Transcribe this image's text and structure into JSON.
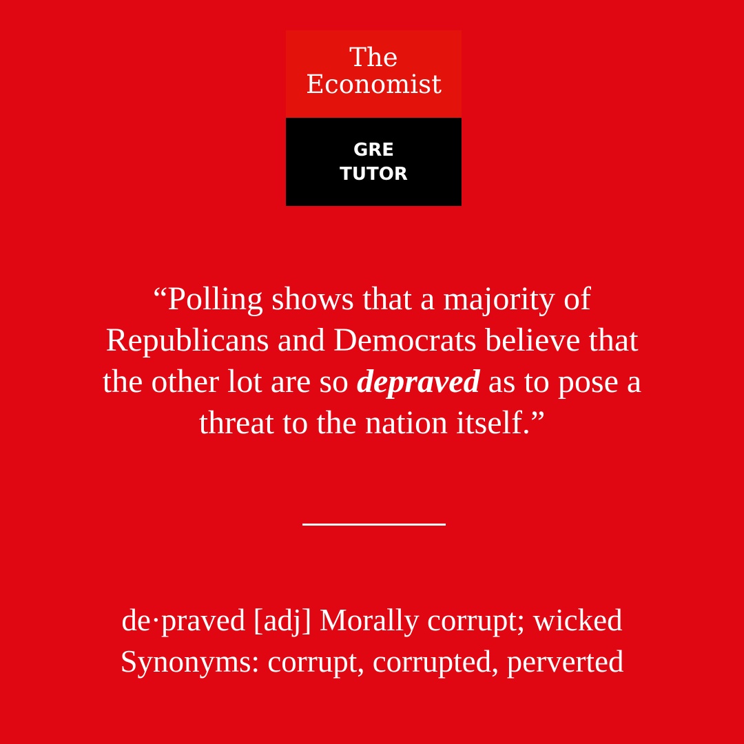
{
  "logo": {
    "line1": "The",
    "line2": "Economist",
    "sub_line1": "GRE",
    "sub_line2": "TUTOR"
  },
  "quote": {
    "open_mark": "“",
    "before": "Polling shows that a majority of Republicans and Democrats believe that the other lot are so ",
    "highlight": "depraved",
    "after": " as to pose a threat to the nation itself.",
    "close_mark": "”"
  },
  "definition": {
    "line1": "de·praved [adj] Morally corrupt; wicked",
    "line2": "Synonyms: corrupt, corrupted, perverted"
  },
  "colors": {
    "background": "#e00713",
    "logo_red": "#e3120b",
    "logo_black": "#000000",
    "text": "#ffffff"
  }
}
